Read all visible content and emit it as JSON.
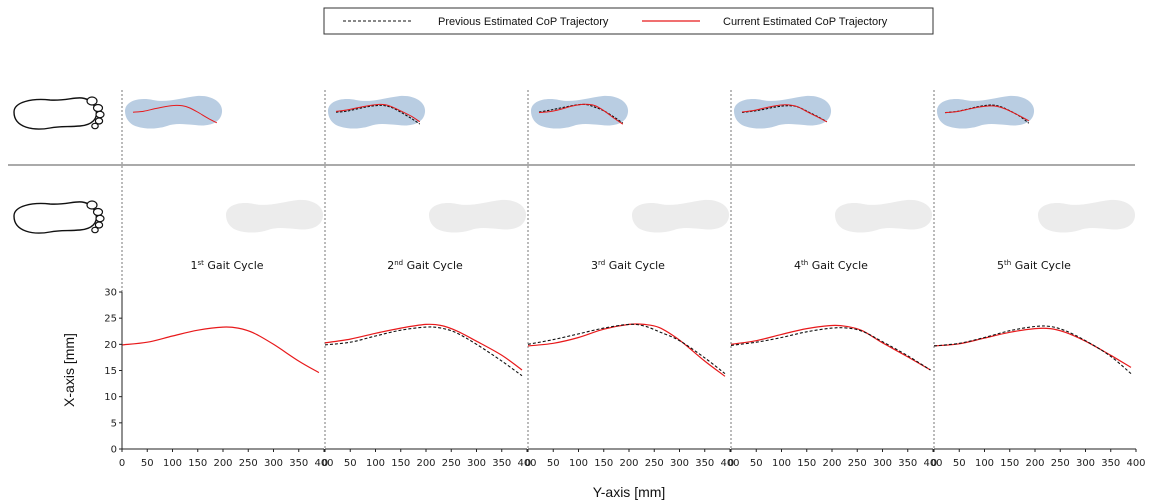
{
  "legend": {
    "dashed_label": "Previous Estimated CoP Trajectory",
    "solid_label": "Current Estimated CoP Trajectory"
  },
  "colors": {
    "previous": "#111111",
    "current": "#e8191b",
    "insole_active": "#b9cde2",
    "insole_idle": "#ececec",
    "divider": "#555555"
  },
  "icons": [
    "foot-outline-icon",
    "foot-outline-icon"
  ],
  "cycles": [
    {
      "num": "1",
      "sup": "st",
      "rest": " Gait Cycle"
    },
    {
      "num": "2",
      "sup": "nd",
      "rest": " Gait Cycle"
    },
    {
      "num": "3",
      "sup": "rd",
      "rest": " Gait Cycle"
    },
    {
      "num": "4",
      "sup": "th",
      "rest": " Gait Cycle"
    },
    {
      "num": "5",
      "sup": "th",
      "rest": " Gait Cycle"
    }
  ],
  "chart_data": {
    "type": "line",
    "xlabel": "Y-axis [mm]",
    "ylabel": "X-axis [mm]",
    "xlim": [
      0,
      400
    ],
    "ylim": [
      0,
      30
    ],
    "xticks": [
      0,
      50,
      100,
      150,
      200,
      250,
      300,
      350,
      400
    ],
    "yticks": [
      0,
      5,
      10,
      15,
      20,
      25,
      30
    ],
    "panels": [
      {
        "title": "1st Gait Cycle",
        "series": [
          {
            "name": "Current Estimated CoP Trajectory",
            "style": "solid",
            "x": [
              0,
              50,
              100,
              150,
              200,
              230,
              260,
              300,
              350,
              390
            ],
            "y": [
              19.9,
              20.4,
              21.6,
              22.7,
              23.3,
              23.1,
              22.2,
              20.0,
              16.8,
              14.6
            ]
          }
        ]
      },
      {
        "title": "2nd Gait Cycle",
        "series": [
          {
            "name": "Previous Estimated CoP Trajectory",
            "style": "dashed",
            "x": [
              0,
              50,
              100,
              150,
              200,
              230,
              260,
              300,
              350,
              390
            ],
            "y": [
              19.9,
              20.4,
              21.6,
              22.7,
              23.3,
              23.1,
              22.2,
              20.0,
              16.8,
              14.0
            ]
          },
          {
            "name": "Current Estimated CoP Trajectory",
            "style": "solid",
            "x": [
              0,
              50,
              100,
              150,
              200,
              230,
              260,
              300,
              350,
              390
            ],
            "y": [
              20.3,
              21.0,
              22.1,
              23.1,
              23.8,
              23.6,
              22.6,
              20.6,
              17.9,
              15.1
            ]
          }
        ]
      },
      {
        "title": "3rd Gait Cycle",
        "series": [
          {
            "name": "Previous Estimated CoP Trajectory",
            "style": "dashed",
            "x": [
              0,
              50,
              100,
              150,
              200,
              230,
              260,
              300,
              350,
              390
            ],
            "y": [
              20.0,
              20.9,
              22.0,
              23.1,
              23.8,
              23.5,
              22.4,
              20.7,
              17.4,
              14.4
            ]
          },
          {
            "name": "Current Estimated CoP Trajectory",
            "style": "solid",
            "x": [
              0,
              50,
              100,
              150,
              200,
              230,
              260,
              300,
              350,
              390
            ],
            "y": [
              19.7,
              20.2,
              21.3,
              22.9,
              23.8,
              23.8,
              23.2,
              20.8,
              16.8,
              13.9
            ]
          }
        ]
      },
      {
        "title": "4th Gait Cycle",
        "series": [
          {
            "name": "Previous Estimated CoP Trajectory",
            "style": "dashed",
            "x": [
              0,
              50,
              100,
              150,
              200,
              230,
              260,
              300,
              350,
              395
            ],
            "y": [
              19.8,
              20.4,
              21.3,
              22.4,
              23.1,
              23.1,
              22.5,
              20.5,
              17.8,
              15.1
            ]
          },
          {
            "name": "Current Estimated CoP Trajectory",
            "style": "solid",
            "x": [
              0,
              50,
              100,
              150,
              200,
              230,
              260,
              300,
              350,
              395
            ],
            "y": [
              20.0,
              20.7,
              21.9,
              23.0,
              23.6,
              23.4,
              22.6,
              20.3,
              17.6,
              15.1
            ]
          }
        ]
      },
      {
        "title": "5th Gait Cycle",
        "series": [
          {
            "name": "Previous Estimated CoP Trajectory",
            "style": "dashed",
            "x": [
              0,
              50,
              100,
              150,
              200,
              230,
              260,
              300,
              350,
              390
            ],
            "y": [
              19.7,
              20.2,
              21.3,
              22.6,
              23.4,
              23.4,
              22.6,
              20.7,
              17.7,
              14.4
            ]
          },
          {
            "name": "Current Estimated CoP Trajectory",
            "style": "solid",
            "x": [
              0,
              50,
              100,
              150,
              200,
              230,
              260,
              300,
              350,
              390
            ],
            "y": [
              19.7,
              20.1,
              21.2,
              22.3,
              23.0,
              23.0,
              22.3,
              20.6,
              17.9,
              15.6
            ]
          }
        ]
      }
    ]
  }
}
